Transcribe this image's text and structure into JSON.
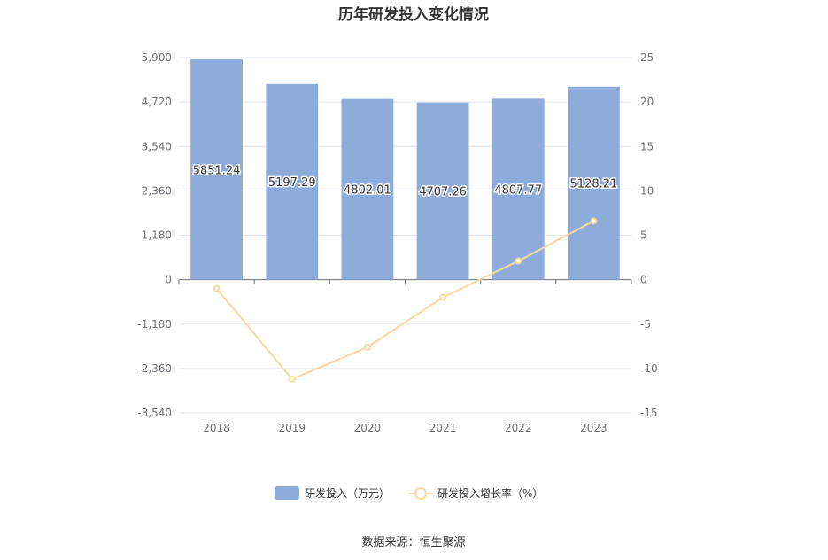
{
  "chart_data": {
    "type": "bar",
    "title": "历年研发投入变化情况",
    "categories": [
      "2018",
      "2019",
      "2020",
      "2021",
      "2022",
      "2023"
    ],
    "series": [
      {
        "name": "研发投入（万元）",
        "type": "bar",
        "axis": "left",
        "color": "#8eacdb",
        "values": [
          5851.24,
          5197.29,
          4802.01,
          4707.26,
          4807.77,
          5128.21
        ],
        "labels": [
          "5851.24",
          "5197.29",
          "4802.01",
          "4707.26",
          "4807.77",
          "5128.21"
        ]
      },
      {
        "name": "研发投入增长率（%）",
        "type": "line",
        "axis": "right",
        "color": "#fad89d",
        "values": [
          -1.0,
          -11.2,
          -7.6,
          -2.0,
          2.1,
          6.6
        ]
      }
    ],
    "y_left": {
      "ylim": [
        -3540,
        5900
      ],
      "ticks": [
        5900,
        4720,
        3540,
        2360,
        1180,
        0,
        -1180,
        -2360,
        -3540
      ],
      "tick_labels": [
        "5,900",
        "4,720",
        "3,540",
        "2,360",
        "1,180",
        "0",
        "-1,180",
        "-2,360",
        "-3,540"
      ]
    },
    "y_right": {
      "ylim": [
        -15,
        25
      ],
      "ticks": [
        25,
        20,
        15,
        10,
        5,
        0,
        -5,
        -10,
        -15
      ],
      "tick_labels": [
        "25",
        "20",
        "15",
        "10",
        "5",
        "0",
        "-5",
        "-10",
        "-15"
      ]
    },
    "grid": true,
    "legend_position": "bottom-center"
  },
  "source_text": "数据来源：恒生聚源",
  "colors": {
    "grid": "#e0e6f1",
    "axis": "#6e7079",
    "bar": "#8eacdb",
    "line": "#fad89d"
  }
}
